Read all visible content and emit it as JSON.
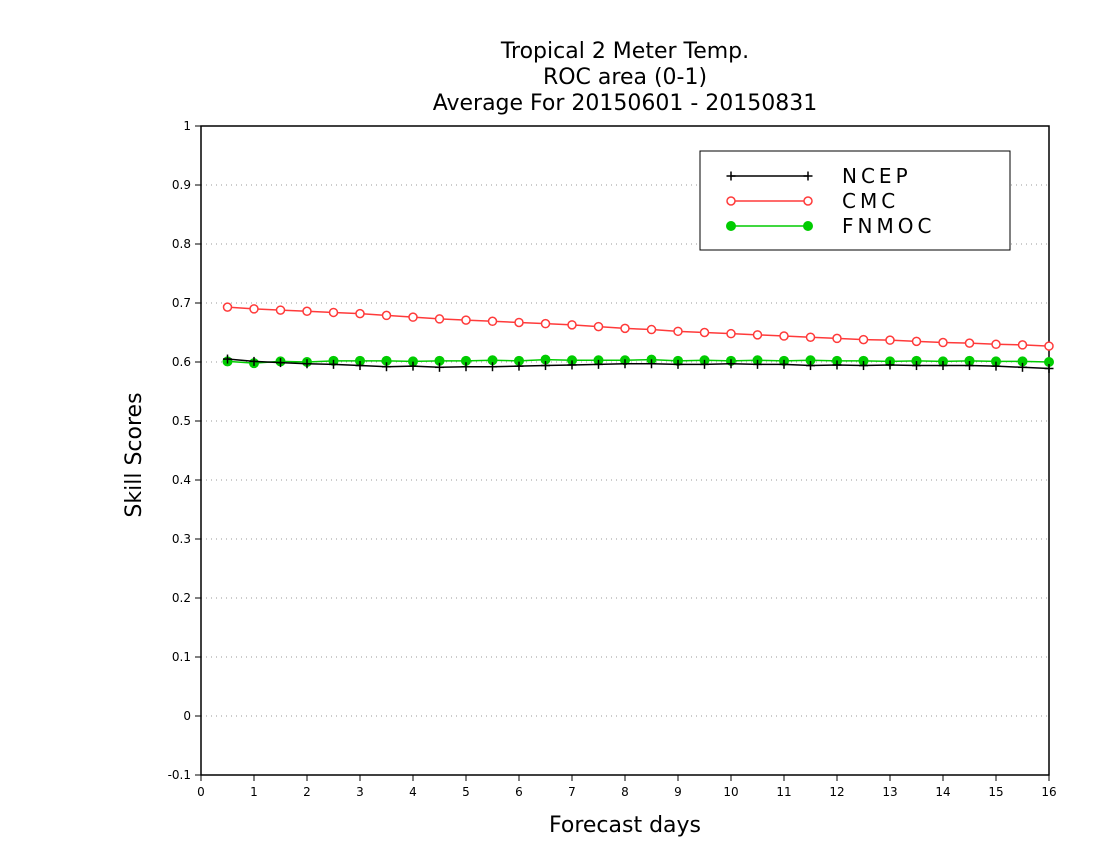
{
  "chart_data": {
    "type": "line",
    "title_lines": [
      "Tropical 2 Meter Temp.",
      "ROC area (0-1)",
      "Average For 20150601 - 20150831"
    ],
    "xlabel": "Forecast days",
    "ylabel": "Skill Scores",
    "xlim": [
      0,
      16
    ],
    "ylim": [
      -0.1,
      1
    ],
    "xticks": [
      0,
      1,
      2,
      3,
      4,
      5,
      6,
      7,
      8,
      9,
      10,
      11,
      12,
      13,
      14,
      15,
      16
    ],
    "xtick_labels": [
      "0",
      "1",
      "2",
      "3",
      "4",
      "5",
      "6",
      "7",
      "8",
      "9",
      "10",
      "11",
      "12",
      "13",
      "14",
      "15",
      "16"
    ],
    "yticks": [
      -0.1,
      0,
      0.1,
      0.2,
      0.3,
      0.4,
      0.5,
      0.6,
      0.7,
      0.8,
      0.9,
      1
    ],
    "ytick_labels": [
      "-0.1",
      "0",
      "0.1",
      "0.2",
      "0.3",
      "0.4",
      "0.5",
      "0.6",
      "0.7",
      "0.8",
      "0.9",
      "1"
    ],
    "grid": true,
    "legend_position": "top-right",
    "x": [
      0.5,
      1,
      1.5,
      2,
      2.5,
      3,
      3.5,
      4,
      4.5,
      5,
      5.5,
      6,
      6.5,
      7,
      7.5,
      8,
      8.5,
      9,
      9.5,
      10,
      10.5,
      11,
      11.5,
      12,
      12.5,
      13,
      13.5,
      14,
      14.5,
      15,
      15.5,
      16
    ],
    "series": [
      {
        "name": "NCEP",
        "color": "#000000",
        "marker": "plus",
        "values": [
          0.605,
          0.601,
          0.599,
          0.597,
          0.596,
          0.594,
          0.592,
          0.593,
          0.591,
          0.592,
          0.592,
          0.593,
          0.594,
          0.595,
          0.596,
          0.597,
          0.597,
          0.596,
          0.596,
          0.597,
          0.596,
          0.596,
          0.594,
          0.595,
          0.594,
          0.595,
          0.594,
          0.594,
          0.594,
          0.593,
          0.591,
          0.589
        ]
      },
      {
        "name": "CMC",
        "color": "#ff3a3a",
        "marker": "open-circle",
        "values": [
          0.693,
          0.69,
          0.688,
          0.686,
          0.684,
          0.682,
          0.679,
          0.676,
          0.673,
          0.671,
          0.669,
          0.667,
          0.665,
          0.663,
          0.66,
          0.657,
          0.655,
          0.652,
          0.65,
          0.648,
          0.646,
          0.644,
          0.642,
          0.64,
          0.638,
          0.637,
          0.635,
          0.633,
          0.632,
          0.63,
          0.629,
          0.627
        ]
      },
      {
        "name": "FNMOC",
        "color": "#00cc00",
        "marker": "filled-circle",
        "values": [
          0.601,
          0.598,
          0.601,
          0.6,
          0.602,
          0.602,
          0.602,
          0.601,
          0.602,
          0.602,
          0.603,
          0.602,
          0.604,
          0.603,
          0.603,
          0.603,
          0.604,
          0.602,
          0.603,
          0.602,
          0.603,
          0.602,
          0.603,
          0.602,
          0.602,
          0.601,
          0.602,
          0.601,
          0.602,
          0.601,
          0.601,
          0.6
        ]
      }
    ]
  }
}
